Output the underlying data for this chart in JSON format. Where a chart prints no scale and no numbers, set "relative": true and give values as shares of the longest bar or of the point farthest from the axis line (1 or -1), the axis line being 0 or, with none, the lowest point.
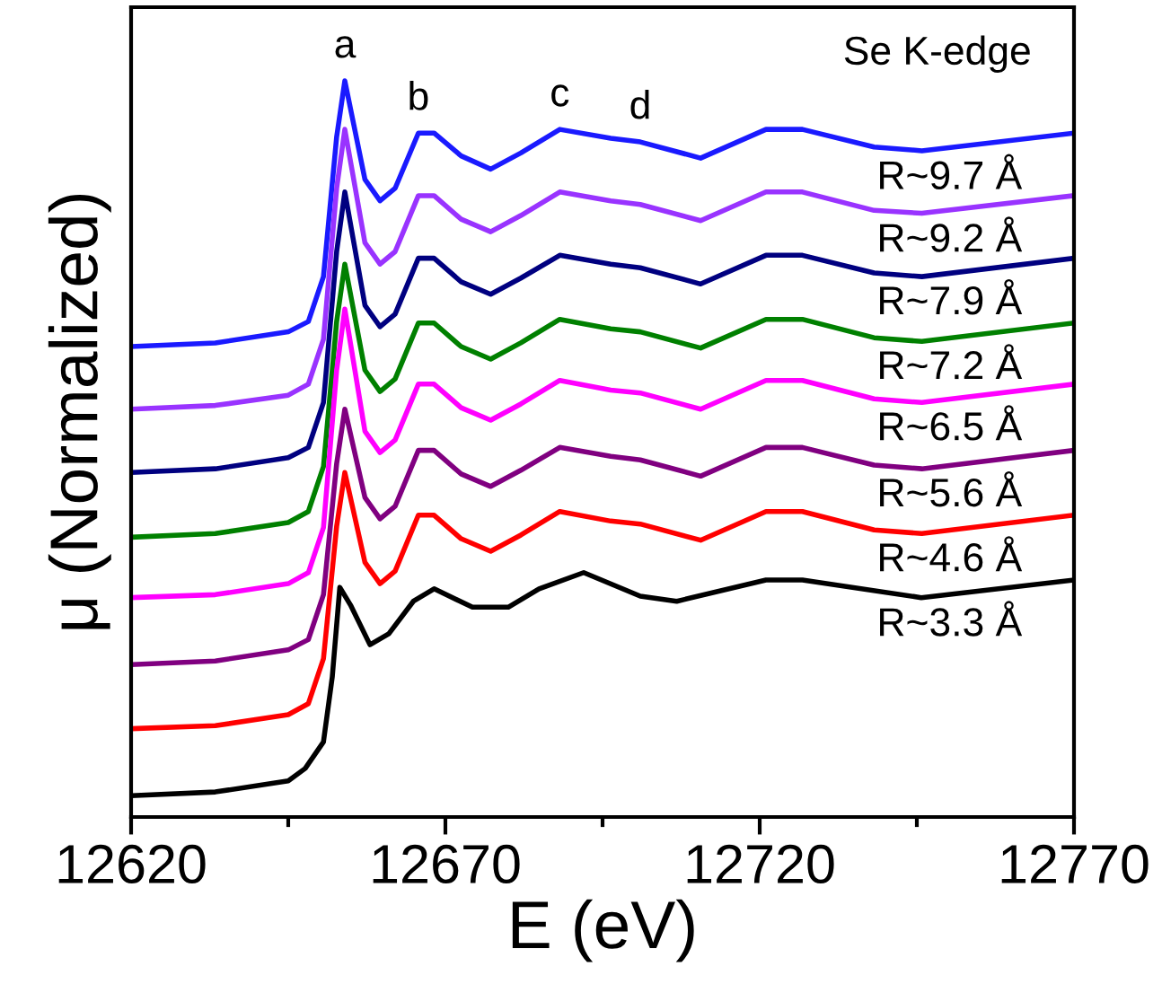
{
  "chart_data": {
    "type": "line",
    "relative": true,
    "xlabel": "E (eV)",
    "ylabel": "μ (Normalized)",
    "xlim": [
      12620,
      12770
    ],
    "xticks": [
      12620,
      {
        "value": 12645,
        "label": null
      },
      12670,
      {
        "value": 12695,
        "label": null
      },
      12720,
      {
        "value": 12745,
        "label": null
      },
      12770
    ],
    "tick_labels": "x",
    "grid": false,
    "legend": false,
    "marker": "none",
    "line_style": "solid",
    "x": [
      12620,
      12633.4,
      12645,
      12648.2,
      12650.6,
      12652.7,
      12654,
      12657.2,
      12659.6,
      12662,
      12665.7,
      12668.2,
      12672.5,
      12677.2,
      12682,
      12688.2,
      12696.3,
      12701,
      12710.6,
      12721,
      12726.8,
      12738.2,
      12745.8,
      12770
    ],
    "annotations": [
      "Se K-edge",
      {
        "text": "a",
        "x": 12654,
        "y": 1
      },
      {
        "text": "b",
        "x": 12665.7,
        "y": 0.929
      },
      {
        "text": "c",
        "x": 12688.2,
        "y": 0.934
      },
      {
        "text": "d",
        "x": 12701,
        "y": 0.917
      }
    ],
    "series": [
      {
        "name": "R~9.7 Å",
        "color": "#1a1aff",
        "values": [
          0.639,
          0.644,
          0.659,
          0.673,
          0.734,
          0.924,
          1,
          0.866,
          0.837,
          0.854,
          0.929,
          0.929,
          0.898,
          0.88,
          0.902,
          0.934,
          0.922,
          0.917,
          0.895,
          0.934,
          0.934,
          0.91,
          0.905,
          0.929
        ]
      },
      {
        "name": "R~9.2 Å",
        "color": "#9933ff",
        "values": [
          0.554,
          0.559,
          0.573,
          0.588,
          0.649,
          0.854,
          0.934,
          0.78,
          0.751,
          0.768,
          0.844,
          0.844,
          0.812,
          0.795,
          0.817,
          0.849,
          0.837,
          0.832,
          0.81,
          0.849,
          0.849,
          0.824,
          0.82,
          0.844
        ]
      },
      {
        "name": "R~7.9 Å",
        "color": "#000080",
        "values": [
          0.468,
          0.473,
          0.488,
          0.502,
          0.563,
          0.768,
          0.849,
          0.695,
          0.666,
          0.683,
          0.759,
          0.759,
          0.727,
          0.71,
          0.732,
          0.763,
          0.751,
          0.746,
          0.724,
          0.763,
          0.763,
          0.739,
          0.734,
          0.759
        ]
      },
      {
        "name": "R~7.2 Å",
        "color": "#008000",
        "values": [
          0.38,
          0.385,
          0.4,
          0.415,
          0.476,
          0.673,
          0.751,
          0.607,
          0.578,
          0.595,
          0.671,
          0.671,
          0.639,
          0.622,
          0.644,
          0.676,
          0.663,
          0.659,
          0.637,
          0.676,
          0.676,
          0.651,
          0.646,
          0.671
        ]
      },
      {
        "name": "R~6.5 Å",
        "color": "#ff00ff",
        "values": [
          0.298,
          0.302,
          0.317,
          0.332,
          0.393,
          0.607,
          0.69,
          0.524,
          0.495,
          0.512,
          0.588,
          0.588,
          0.556,
          0.539,
          0.561,
          0.593,
          0.58,
          0.576,
          0.554,
          0.593,
          0.593,
          0.568,
          0.563,
          0.588
        ]
      },
      {
        "name": "R~5.6 Å",
        "color": "#800080",
        "values": [
          0.207,
          0.212,
          0.227,
          0.241,
          0.302,
          0.48,
          0.554,
          0.434,
          0.405,
          0.422,
          0.498,
          0.498,
          0.466,
          0.449,
          0.471,
          0.502,
          0.49,
          0.485,
          0.463,
          0.502,
          0.502,
          0.478,
          0.473,
          0.498
        ]
      },
      {
        "name": "R~4.6 Å",
        "color": "#ff0000",
        "values": [
          0.12,
          0.124,
          0.139,
          0.154,
          0.215,
          0.395,
          0.468,
          0.346,
          0.317,
          0.334,
          0.41,
          0.41,
          0.378,
          0.361,
          0.383,
          0.415,
          0.402,
          0.398,
          0.376,
          0.415,
          0.415,
          0.39,
          0.385,
          0.41
        ]
      },
      {
        "name": "R~3.3 Å",
        "color": "#000000",
        "x": [
          12620,
          12633.4,
          12645,
          12647.7,
          12650.6,
          12652,
          12653.2,
          12654.9,
          12658,
          12661,
          12664.9,
          12668.2,
          12674.3,
          12680,
          12684.9,
          12692,
          12701,
          12706.8,
          12721,
          12726.8,
          12745.7,
          12770
        ],
        "values": [
          0.029,
          0.034,
          0.049,
          0.066,
          0.102,
          0.19,
          0.312,
          0.288,
          0.234,
          0.249,
          0.293,
          0.31,
          0.285,
          0.285,
          0.31,
          0.332,
          0.3,
          0.293,
          0.322,
          0.322,
          0.298,
          0.322
        ]
      }
    ]
  }
}
